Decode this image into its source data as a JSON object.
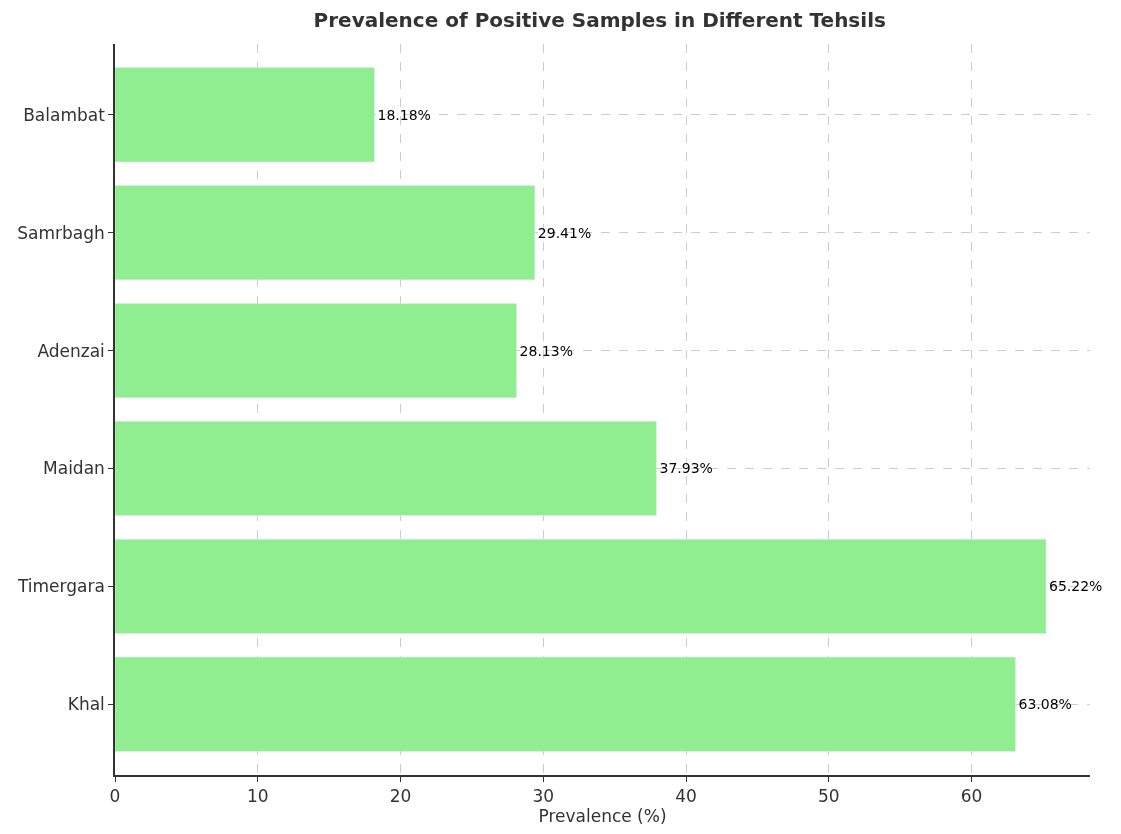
{
  "chart_data": {
    "type": "bar",
    "orientation": "horizontal",
    "title": "Prevalence of Positive Samples in Different Tehsils",
    "xlabel": "Prevalence (%)",
    "categories": [
      "Balambat",
      "Samrbagh",
      "Adenzai",
      "Maidan",
      "Timergara",
      "Khal"
    ],
    "values": [
      18.18,
      29.41,
      28.13,
      37.93,
      65.22,
      63.08
    ],
    "value_labels": [
      "18.18%",
      "29.41%",
      "28.13%",
      "37.93%",
      "65.22%",
      "63.08%"
    ],
    "color": "#90ee90",
    "xlim": [
      0,
      68.3
    ],
    "xticks": [
      0,
      10,
      20,
      30,
      40,
      50,
      60
    ],
    "grid": true
  }
}
